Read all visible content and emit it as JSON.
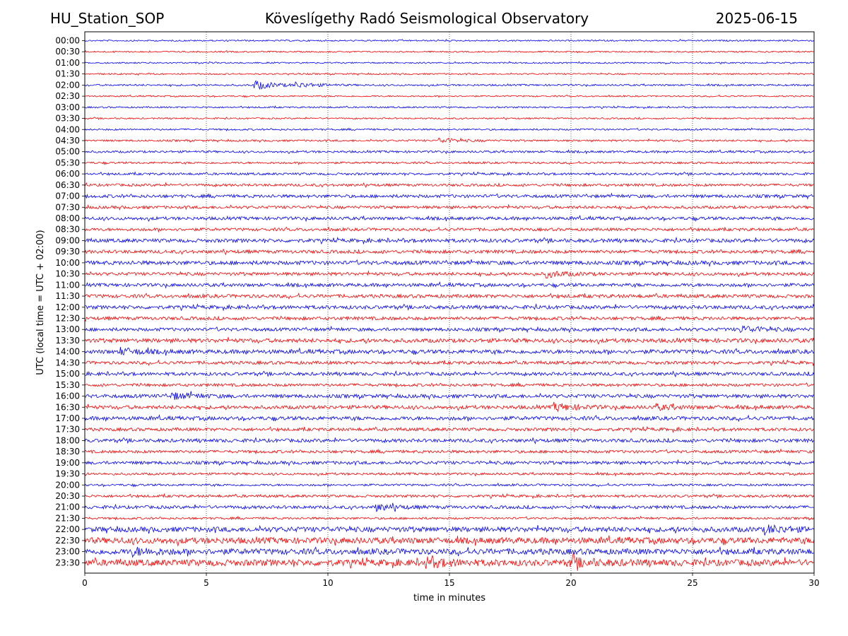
{
  "header": {
    "station": "HU_Station_SOP",
    "observatory": "Köveslígethy Radó Seismological Observatory",
    "date": "2025-06-15"
  },
  "chart_data": {
    "type": "line",
    "title": "Köveslígethy Radó Seismological Observatory",
    "xlabel": "time in minutes",
    "ylabel": "UTC (local time = UTC + 02:00)",
    "xlim": [
      0,
      30
    ],
    "x_ticks": [
      "0",
      "5",
      "10",
      "15",
      "20",
      "25",
      "30"
    ],
    "grid": "vertical dotted at 5-minute intervals",
    "colors": {
      "even_row": "#0000ff",
      "odd_row": "#ff0000"
    },
    "row_labels": [
      "00:00",
      "00:30",
      "01:00",
      "01:30",
      "02:00",
      "02:30",
      "03:00",
      "03:30",
      "04:00",
      "04:30",
      "05:00",
      "05:30",
      "06:00",
      "06:30",
      "07:00",
      "07:30",
      "08:00",
      "08:30",
      "09:00",
      "09:30",
      "10:00",
      "10:30",
      "11:00",
      "11:30",
      "12:00",
      "12:30",
      "13:00",
      "13:30",
      "14:00",
      "14:30",
      "15:00",
      "15:30",
      "16:00",
      "16:30",
      "17:00",
      "17:30",
      "18:00",
      "18:30",
      "19:00",
      "19:30",
      "20:00",
      "20:30",
      "21:00",
      "21:30",
      "22:00",
      "22:30",
      "23:00",
      "23:30"
    ],
    "noise_level": [
      1.0,
      1.0,
      1.0,
      1.0,
      1.2,
      1.0,
      1.1,
      1.0,
      1.2,
      1.3,
      1.5,
      1.4,
      1.6,
      1.8,
      2.2,
      2.0,
      2.2,
      2.0,
      2.5,
      2.3,
      2.7,
      2.2,
      2.3,
      2.4,
      2.5,
      2.3,
      2.3,
      2.8,
      2.8,
      2.2,
      2.3,
      2.0,
      2.5,
      2.5,
      2.6,
      2.2,
      2.4,
      2.0,
      2.2,
      1.6,
      1.5,
      1.8,
      2.2,
      1.5,
      3.5,
      4.2,
      4.0,
      4.5
    ],
    "events": [
      {
        "row": "02:00",
        "minute": 7.0,
        "amplitude": 6
      },
      {
        "row": "02:00",
        "minute": 8.7,
        "amplitude": 3
      },
      {
        "row": "04:30",
        "minute": 14.6,
        "amplitude": 3
      },
      {
        "row": "10:30",
        "minute": 19.0,
        "amplitude": 4
      },
      {
        "row": "13:00",
        "minute": 27.0,
        "amplitude": 4
      },
      {
        "row": "14:00",
        "minute": 1.5,
        "amplitude": 4
      },
      {
        "row": "16:00",
        "minute": 3.6,
        "amplitude": 4
      },
      {
        "row": "16:30",
        "minute": 19.3,
        "amplitude": 5
      },
      {
        "row": "16:30",
        "minute": 23.5,
        "amplitude": 3
      },
      {
        "row": "21:00",
        "minute": 12.0,
        "amplitude": 4
      },
      {
        "row": "22:00",
        "minute": 28.0,
        "amplitude": 5
      },
      {
        "row": "23:00",
        "minute": 2.0,
        "amplitude": 4
      },
      {
        "row": "23:30",
        "minute": 14.0,
        "amplitude": 5
      },
      {
        "row": "23:30",
        "minute": 20.0,
        "amplitude": 5
      }
    ]
  }
}
